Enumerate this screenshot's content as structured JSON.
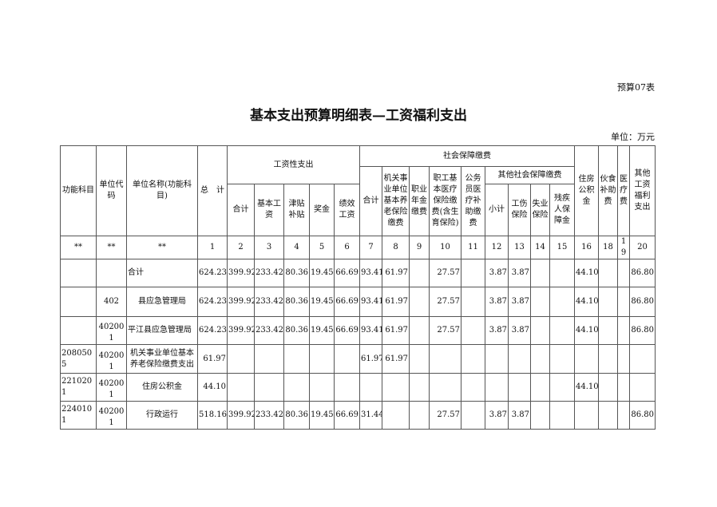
{
  "form_no": "预算07表",
  "title": "基本支出预算明细表—工资福利支出",
  "unit": "单位：万元",
  "header": {
    "func_subject": "功能科目",
    "unit_code": "单位代码",
    "unit_name": "单位名称(功能科目)",
    "total": "总　计",
    "wage_group": "工资性支出",
    "wage_sum": "合计",
    "basic_wage": "基本工资",
    "allowance": "津贴补贴",
    "bonus": "奖金",
    "performance": "绩效工资",
    "social_group": "社会保障缴费",
    "social_sum": "合计",
    "pension": "机关事业单位基本养老保险缴费",
    "annuity": "职业年金缴费",
    "medical": "职工基本医疗保险缴费(含生育保险)",
    "civil_medical": "公务员医疗补助缴费",
    "other_social_group": "其他社会保障缴费",
    "subtotal": "小计",
    "injury": "工伤保险",
    "unemployment": "失业保险",
    "disabled": "残疾人保障金",
    "housing": "住房公积金",
    "meal": "伙食补助费",
    "medical_fee": "医疗费",
    "other_welfare": "其他工资福利支出"
  },
  "index_row": [
    "**",
    "**",
    "**",
    "1",
    "2",
    "3",
    "4",
    "5",
    "6",
    "7",
    "8",
    "9",
    "10",
    "11",
    "12",
    "13",
    "14",
    "15",
    "16",
    "18",
    "19",
    "20"
  ],
  "rows": [
    {
      "cells": [
        "",
        "",
        "合计",
        "624.23",
        "399.92",
        "233.42",
        "80.36",
        "19.45",
        "66.69",
        "93.41",
        "61.97",
        "",
        "27.57",
        "",
        "3.87",
        "3.87",
        "",
        "",
        "44.10",
        "",
        "",
        "86.80"
      ]
    },
    {
      "cells": [
        "",
        "402",
        "县应急管理局",
        "624.23",
        "399.92",
        "233.42",
        "80.36",
        "19.45",
        "66.69",
        "93.41",
        "61.97",
        "",
        "27.57",
        "",
        "3.87",
        "3.87",
        "",
        "",
        "44.10",
        "",
        "",
        "86.80"
      ]
    },
    {
      "cells": [
        "",
        "402001",
        "平江县应急管理局",
        "624.23",
        "399.92",
        "233.42",
        "80.36",
        "19.45",
        "66.69",
        "93.41",
        "61.97",
        "",
        "27.57",
        "",
        "3.87",
        "3.87",
        "",
        "",
        "44.10",
        "",
        "",
        "86.80"
      ]
    },
    {
      "cells": [
        "2080505",
        "402001",
        "机关事业单位基本养老保险缴费支出",
        "61.97",
        "",
        "",
        "",
        "",
        "",
        "61.97",
        "61.97",
        "",
        "",
        "",
        "",
        "",
        "",
        "",
        "",
        "",
        "",
        ""
      ]
    },
    {
      "cells": [
        "2210201",
        "402001",
        "住房公积金",
        "44.10",
        "",
        "",
        "",
        "",
        "",
        "",
        "",
        "",
        "",
        "",
        "",
        "",
        "",
        "",
        "44.10",
        "",
        "",
        ""
      ]
    },
    {
      "cells": [
        "2240101",
        "402001",
        "行政运行",
        "518.16",
        "399.92",
        "233.42",
        "80.36",
        "19.45",
        "66.69",
        "31.44",
        "",
        "",
        "27.57",
        "",
        "3.87",
        "3.87",
        "",
        "",
        "",
        "",
        "",
        "86.80"
      ]
    }
  ]
}
